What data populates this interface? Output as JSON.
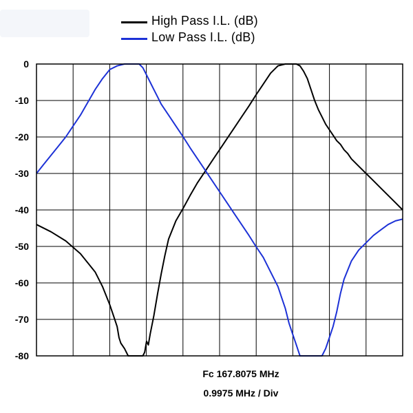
{
  "chart_data": {
    "type": "line",
    "title": "",
    "xlabel": "",
    "ylabel": "",
    "ylim": [
      -80,
      0
    ],
    "xlim": [
      -4.9875,
      4.9875
    ],
    "yticks": [
      "0",
      "-10",
      "-20",
      "-30",
      "-40",
      "-50",
      "-60",
      "-70",
      "-80"
    ],
    "grid": true,
    "legend_position": "top-center",
    "annotations": {
      "center_frequency": "Fc 167.8075 MHz",
      "scale": "0.9975 MHz / Div"
    },
    "series": [
      {
        "name": "High Pass I.L. (dB)",
        "color": "#000000",
        "x": [
          -4.9875,
          -4.59,
          -4.19,
          -3.79,
          -3.39,
          -3.19,
          -2.99,
          -2.89,
          -2.79,
          -2.74,
          -2.69,
          -2.59,
          -2.49,
          -2.39,
          -2.29,
          -2.19,
          -2.09,
          -2.04,
          -1.99,
          -1.94,
          -1.89,
          -1.79,
          -1.69,
          -1.59,
          -1.49,
          -1.39,
          -1.19,
          -0.99,
          -0.8,
          -0.6,
          -0.4,
          -0.2,
          0.0,
          0.2,
          0.4,
          0.6,
          0.8,
          0.99,
          1.19,
          1.39,
          1.59,
          1.79,
          1.99,
          2.09,
          2.19,
          2.29,
          2.39,
          2.49,
          2.59,
          2.69,
          2.79,
          2.89,
          2.99,
          3.09,
          3.19,
          3.29,
          3.39,
          3.49,
          3.59,
          3.79,
          3.99,
          4.19,
          4.39,
          4.59,
          4.79,
          4.9875
        ],
        "y": [
          -44,
          -46,
          -48.5,
          -52,
          -57,
          -61,
          -66,
          -69,
          -72,
          -75,
          -76.5,
          -78,
          -80,
          -80,
          -80,
          -80,
          -80,
          -79,
          -76,
          -77,
          -74,
          -69,
          -63,
          -57.5,
          -52.5,
          -48,
          -43,
          -39.5,
          -36,
          -32.5,
          -29.5,
          -26.5,
          -23.5,
          -20.5,
          -17.5,
          -14.5,
          -11.5,
          -8.5,
          -5.5,
          -2.5,
          -0.5,
          0,
          0,
          0,
          -0.5,
          -2,
          -4,
          -7,
          -10,
          -12.5,
          -14.5,
          -16.5,
          -18,
          -19.5,
          -21,
          -22,
          -23.5,
          -24.5,
          -26,
          -28,
          -30,
          -32,
          -34,
          -36,
          -38,
          -40
        ]
      },
      {
        "name": "Low Pass I.L. (dB)",
        "color": "#1c31d6",
        "x": [
          -4.9875,
          -4.79,
          -4.59,
          -4.39,
          -4.19,
          -3.99,
          -3.79,
          -3.59,
          -3.39,
          -3.19,
          -2.99,
          -2.79,
          -2.59,
          -2.49,
          -2.39,
          -2.29,
          -2.19,
          -2.09,
          -1.99,
          -1.89,
          -1.79,
          -1.69,
          -1.59,
          -1.39,
          -1.19,
          -0.99,
          -0.8,
          -0.6,
          -0.4,
          -0.2,
          0.0,
          0.2,
          0.4,
          0.6,
          0.8,
          0.99,
          1.19,
          1.39,
          1.59,
          1.69,
          1.79,
          1.89,
          1.99,
          2.09,
          2.19,
          2.29,
          2.39,
          2.49,
          2.59,
          2.69,
          2.79,
          2.89,
          2.99,
          3.09,
          3.19,
          3.29,
          3.39,
          3.59,
          3.79,
          3.99,
          4.19,
          4.39,
          4.59,
          4.79,
          4.9875
        ],
        "y": [
          -30,
          -27.5,
          -25,
          -22.5,
          -20,
          -17,
          -14,
          -10.5,
          -7,
          -4,
          -1.5,
          -0.5,
          0,
          0,
          0,
          0,
          0,
          -1,
          -3,
          -5,
          -7,
          -9,
          -11,
          -14,
          -17,
          -20,
          -23,
          -26,
          -29,
          -32,
          -35,
          -38,
          -41,
          -44,
          -47,
          -50,
          -53,
          -57,
          -61,
          -64,
          -67,
          -71,
          -74,
          -77,
          -80,
          -80,
          -80,
          -80,
          -80,
          -80,
          -80,
          -78,
          -75,
          -72,
          -68,
          -63,
          -59,
          -54,
          -51,
          -49,
          -47,
          -45.5,
          -44,
          -43,
          -42.5
        ]
      }
    ]
  }
}
